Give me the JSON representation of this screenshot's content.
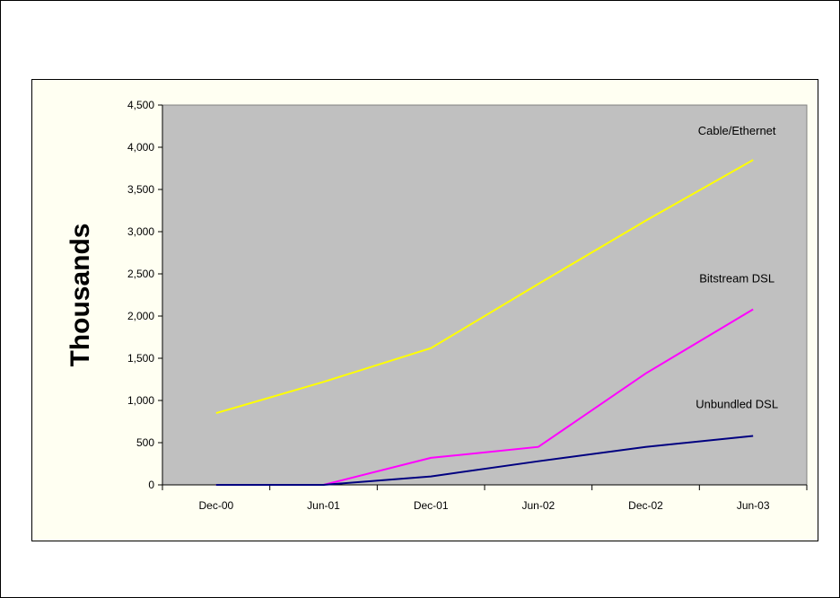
{
  "chart_data": {
    "type": "line",
    "title": "",
    "xlabel": "",
    "ylabel": "Thousands",
    "categories": [
      "Dec-00",
      "Jun-01",
      "Dec-01",
      "Jun-02",
      "Dec-02",
      "Jun-03"
    ],
    "ylim": [
      0,
      4500
    ],
    "yticks": [
      0,
      500,
      1000,
      1500,
      2000,
      2500,
      3000,
      3500,
      4000,
      4500
    ],
    "ytick_labels": [
      "0",
      "500",
      "1,000",
      "1,500",
      "2,000",
      "2,500",
      "3,000",
      "3,500",
      "4,000",
      "4,500"
    ],
    "grid": false,
    "plot_background": "#c0c0c0",
    "chart_background": "#fffff2",
    "series": [
      {
        "name": "Cable/Ethernet",
        "color": "#ffff00",
        "values": [
          850,
          1220,
          1620,
          2380,
          3130,
          3850
        ]
      },
      {
        "name": "Bitstream DSL",
        "color": "#ff00ff",
        "values": [
          0,
          0,
          320,
          450,
          1320,
          2080
        ]
      },
      {
        "name": "Unbundled DSL",
        "color": "#000080",
        "values": [
          0,
          0,
          100,
          280,
          450,
          580
        ]
      }
    ]
  }
}
